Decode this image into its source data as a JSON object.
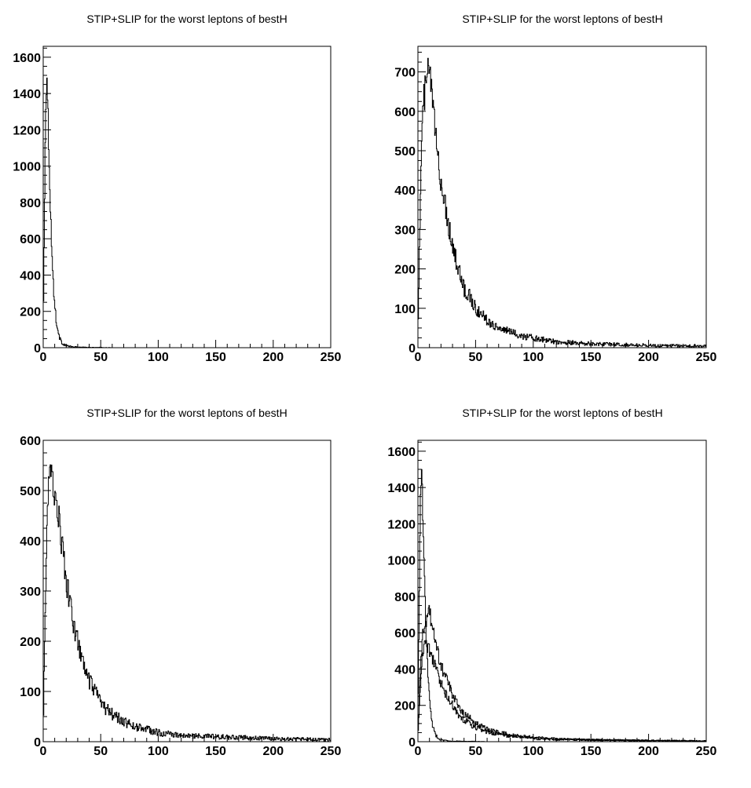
{
  "chart_data": [
    {
      "type": "histogram",
      "title": "STIP+SLIP for the worst leptons of bestH",
      "xlim": [
        0,
        250
      ],
      "ylim": [
        0,
        1660
      ],
      "x_ticks": [
        0,
        50,
        100,
        150,
        200,
        250
      ],
      "y_ticks": [
        0,
        200,
        400,
        600,
        800,
        1000,
        1200,
        1400,
        1600
      ],
      "grid": false,
      "series": [
        {
          "x": [
            0,
            1,
            2,
            3,
            4,
            5,
            6,
            7,
            8,
            9,
            10,
            11,
            12,
            13,
            14,
            15,
            16,
            18,
            20,
            22,
            25,
            30,
            35,
            40,
            50,
            60,
            80,
            100,
            150,
            250
          ],
          "y": [
            100,
            700,
            1300,
            1500,
            1340,
            1080,
            840,
            620,
            460,
            330,
            240,
            170,
            120,
            85,
            60,
            42,
            30,
            18,
            12,
            8,
            5,
            3,
            2,
            1,
            1,
            0,
            0,
            0,
            0,
            0
          ]
        }
      ]
    },
    {
      "type": "histogram",
      "title": "STIP+SLIP for the worst leptons of bestH",
      "xlim": [
        0,
        250
      ],
      "ylim": [
        0,
        765
      ],
      "x_ticks": [
        0,
        50,
        100,
        150,
        200,
        250
      ],
      "y_ticks": [
        0,
        100,
        200,
        300,
        400,
        500,
        600,
        700
      ],
      "grid": false,
      "series": [
        {
          "x": [
            0,
            2,
            4,
            6,
            8,
            10,
            12,
            14,
            16,
            18,
            20,
            25,
            30,
            35,
            40,
            45,
            50,
            60,
            70,
            80,
            90,
            100,
            120,
            150,
            200,
            250
          ],
          "y": [
            50,
            350,
            600,
            650,
            680,
            720,
            640,
            580,
            520,
            470,
            420,
            340,
            260,
            200,
            150,
            130,
            100,
            70,
            50,
            40,
            30,
            25,
            15,
            10,
            6,
            4
          ]
        }
      ]
    },
    {
      "type": "histogram",
      "title": "STIP+SLIP for the worst leptons of bestH",
      "xlim": [
        0,
        250
      ],
      "ylim": [
        0,
        600
      ],
      "x_ticks": [
        0,
        50,
        100,
        150,
        200,
        250
      ],
      "y_ticks": [
        0,
        100,
        200,
        300,
        400,
        500,
        600
      ],
      "grid": false,
      "series": [
        {
          "x": [
            0,
            2,
            4,
            6,
            8,
            10,
            12,
            14,
            16,
            18,
            20,
            25,
            30,
            35,
            40,
            45,
            50,
            60,
            70,
            80,
            90,
            100,
            120,
            150,
            200,
            250
          ],
          "y": [
            20,
            300,
            480,
            530,
            520,
            500,
            470,
            440,
            400,
            360,
            320,
            250,
            200,
            150,
            120,
            100,
            75,
            55,
            40,
            30,
            25,
            18,
            12,
            10,
            6,
            4
          ]
        }
      ]
    },
    {
      "type": "histogram",
      "title": "STIP+SLIP for the worst leptons of bestH",
      "xlim": [
        0,
        250
      ],
      "ylim": [
        0,
        1660
      ],
      "x_ticks": [
        0,
        50,
        100,
        150,
        200,
        250
      ],
      "y_ticks": [
        0,
        200,
        400,
        600,
        800,
        1000,
        1200,
        1400,
        1600
      ],
      "grid": false,
      "series": [
        {
          "x": [
            0,
            1,
            2,
            3,
            4,
            5,
            6,
            7,
            8,
            9,
            10,
            11,
            12,
            13,
            14,
            15,
            16,
            18,
            20,
            22,
            25,
            30,
            35,
            40,
            50,
            60,
            80,
            100,
            150,
            250
          ],
          "y": [
            100,
            700,
            1300,
            1500,
            1340,
            1080,
            840,
            620,
            460,
            330,
            240,
            170,
            120,
            85,
            60,
            42,
            30,
            18,
            12,
            8,
            5,
            3,
            2,
            1,
            1,
            0,
            0,
            0,
            0,
            0
          ]
        },
        {
          "x": [
            0,
            2,
            4,
            6,
            8,
            10,
            12,
            14,
            16,
            18,
            20,
            25,
            30,
            35,
            40,
            45,
            50,
            60,
            70,
            80,
            90,
            100,
            120,
            150,
            200,
            250
          ],
          "y": [
            50,
            350,
            600,
            650,
            680,
            720,
            640,
            580,
            520,
            470,
            420,
            340,
            260,
            200,
            150,
            130,
            100,
            70,
            50,
            40,
            30,
            25,
            15,
            10,
            6,
            4
          ]
        },
        {
          "x": [
            0,
            2,
            4,
            6,
            8,
            10,
            12,
            14,
            16,
            18,
            20,
            25,
            30,
            35,
            40,
            45,
            50,
            60,
            70,
            80,
            90,
            100,
            120,
            150,
            200,
            250
          ],
          "y": [
            20,
            300,
            480,
            530,
            520,
            500,
            470,
            440,
            400,
            360,
            320,
            250,
            200,
            150,
            120,
            100,
            75,
            55,
            40,
            30,
            25,
            18,
            12,
            10,
            6,
            4
          ]
        }
      ]
    }
  ]
}
